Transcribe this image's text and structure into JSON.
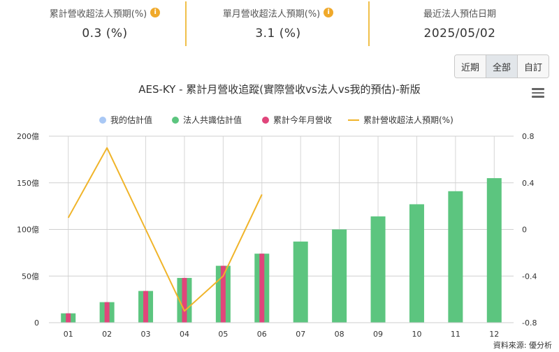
{
  "stats": [
    {
      "label": "累計營收超法人預期(%)",
      "value": "0.3 (%)",
      "info_icon": "info-icon"
    },
    {
      "label": "單月營收超法人預期(%)",
      "value": "3.1 (%)",
      "info_icon": "info-icon"
    },
    {
      "label": "最近法人預估日期",
      "value": "2025/05/02"
    }
  ],
  "range_buttons": [
    {
      "label": "近期",
      "active": false
    },
    {
      "label": "全部",
      "active": true
    },
    {
      "label": "自訂",
      "active": false
    }
  ],
  "menu_icon": "hamburger-menu-icon",
  "credit": "資料來源: 優分析",
  "colors": {
    "my_estimate": "#a9c8f5",
    "consensus": "#5cc57f",
    "cumulative": "#e0457b",
    "beat_line": "#f0b429",
    "divider": "#f0c04a",
    "info": "#f0a92a"
  },
  "chart_data": {
    "type": "bar+line",
    "title": "AES-KY - 累計月營收追蹤(實際營收vs法人vs我的預估)-新版",
    "categories": [
      "01",
      "02",
      "03",
      "04",
      "05",
      "06",
      "07",
      "08",
      "09",
      "10",
      "11",
      "12"
    ],
    "y_left": {
      "ticks": [
        "0",
        "50億",
        "100億",
        "150億",
        "200億"
      ],
      "min": 0,
      "max": 200
    },
    "y_right": {
      "ticks": [
        "-0.8",
        "-0.4",
        "0",
        "0.4",
        "0.8"
      ],
      "min": -0.8,
      "max": 0.8
    },
    "legend_position": "top",
    "series": [
      {
        "name": "我的估計值",
        "type": "bar",
        "axis": "left",
        "color": "#a9c8f5",
        "values": [
          null,
          null,
          null,
          null,
          null,
          null,
          null,
          null,
          null,
          null,
          null,
          null
        ]
      },
      {
        "name": "法人共識估計值",
        "type": "bar",
        "axis": "left",
        "color": "#5cc57f",
        "values": [
          10,
          22,
          34,
          48,
          61,
          74,
          87,
          100,
          114,
          127,
          141,
          155
        ]
      },
      {
        "name": "累計今年月營收",
        "type": "bar",
        "axis": "left",
        "color": "#e0457b",
        "values": [
          10,
          22,
          34,
          48,
          61,
          74,
          null,
          null,
          null,
          null,
          null,
          null
        ]
      },
      {
        "name": "累計營收超法人預期(%)",
        "type": "line",
        "axis": "right",
        "color": "#f0b429",
        "values": [
          0.1,
          0.7,
          0.0,
          -0.7,
          -0.4,
          0.3,
          null,
          null,
          null,
          null,
          null,
          null
        ]
      }
    ]
  }
}
